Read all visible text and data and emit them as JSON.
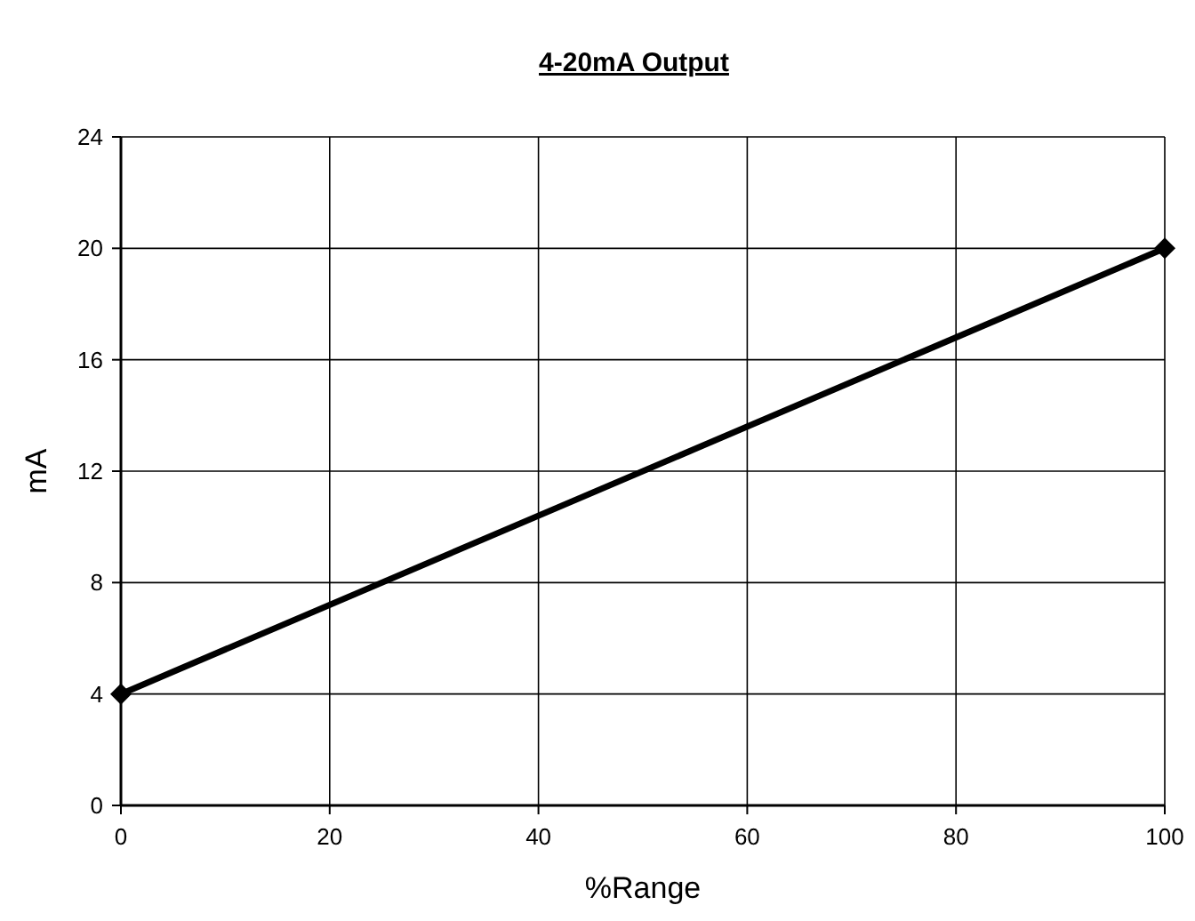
{
  "chart_data": {
    "type": "line",
    "title": "4-20mA Output",
    "xlabel": "%Range",
    "ylabel": "mA",
    "x": [
      0,
      100
    ],
    "series": [
      {
        "color": "#000000",
        "values": [
          4,
          20
        ]
      }
    ],
    "xlim": [
      0,
      100
    ],
    "xticks": [
      0,
      20,
      40,
      60,
      80,
      100
    ],
    "ylim": [
      0,
      24
    ],
    "yticks": [
      0,
      4,
      8,
      12,
      16,
      20,
      24
    ],
    "grid": true,
    "marker": "diamond",
    "line_style": "solid"
  }
}
